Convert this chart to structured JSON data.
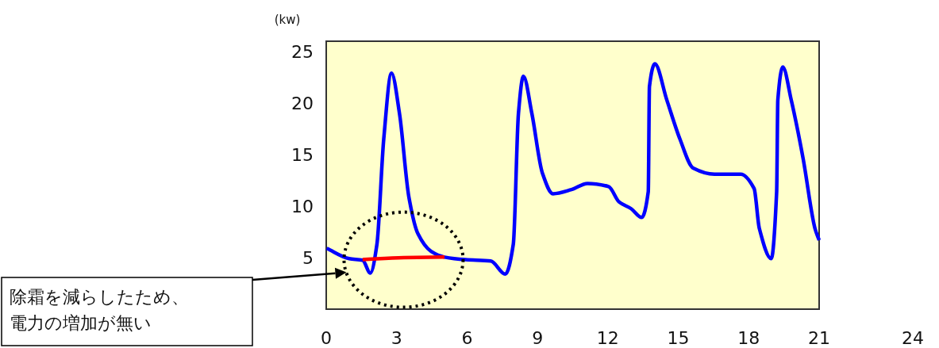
{
  "chart_data": {
    "type": "line",
    "ylabel": "(kw)",
    "xlim": [
      0,
      21
    ],
    "ylim": [
      0,
      26
    ],
    "xticks": [
      0,
      3,
      6,
      9,
      12,
      15,
      18,
      21
    ],
    "yticks": [
      5,
      10,
      15,
      20,
      25
    ],
    "grid": false,
    "marker": "none",
    "line_style": "solid",
    "series": [
      {
        "color": "#0000ff",
        "x": [
          0.02,
          0.98,
          1.55,
          1.88,
          2.16,
          2.45,
          2.78,
          3.12,
          3.52,
          3.91,
          4.47,
          5.04,
          5.94,
          7.01,
          7.63,
          7.97,
          8.19,
          8.4,
          8.76,
          9.21,
          9.66,
          10.45,
          11.13,
          12.03,
          12.48,
          12.99,
          13.44,
          13.72,
          13.77,
          14.0,
          14.51,
          15.07,
          15.63,
          16.54,
          17.66,
          18.23,
          18.45,
          18.96,
          19.19,
          19.24,
          19.45,
          19.81,
          20.31,
          20.82,
          21
        ],
        "values": [
          5.9,
          4.9,
          4.75,
          3.5,
          6.3,
          16.5,
          22.9,
          19.0,
          10.9,
          7.3,
          5.6,
          5.05,
          4.8,
          4.67,
          3.4,
          6.3,
          19.0,
          22.6,
          19.0,
          13.2,
          11.2,
          11.6,
          12.2,
          11.9,
          10.4,
          9.75,
          8.9,
          11.4,
          21.6,
          23.8,
          20.3,
          16.5,
          13.7,
          13.1,
          13.1,
          11.7,
          7.85,
          4.9,
          11.4,
          20.3,
          23.5,
          20.3,
          14.7,
          7.85,
          6.7
        ]
      },
      {
        "color": "#ff0000",
        "x": [
          1.55,
          3.3,
          5.04
        ],
        "values": [
          4.8,
          5.0,
          5.05
        ]
      }
    ],
    "annotations": [
      "除霜を減らしたため、電力の増加が無い",
      "24"
    ]
  }
}
